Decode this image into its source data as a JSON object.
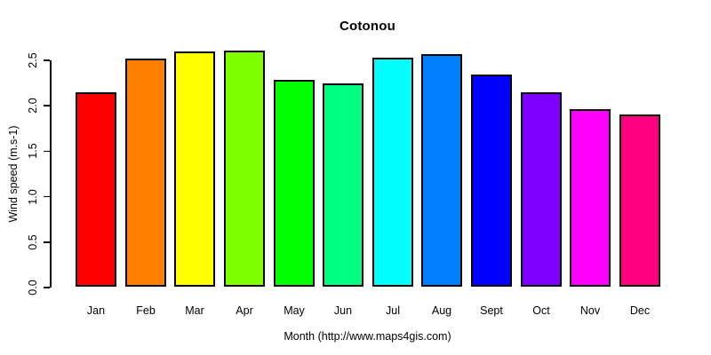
{
  "chart_data": {
    "type": "bar",
    "title": "Cotonou",
    "xlabel": "Month (http://www.maps4gis.com)",
    "ylabel": "Wind speed (m.s-1)",
    "categories": [
      "Jan",
      "Feb",
      "Mar",
      "Apr",
      "May",
      "Jun",
      "Jul",
      "Aug",
      "Sept",
      "Oct",
      "Nov",
      "Dec"
    ],
    "values": [
      2.14,
      2.51,
      2.59,
      2.6,
      2.28,
      2.24,
      2.52,
      2.56,
      2.33,
      2.14,
      1.95,
      1.89
    ],
    "bar_colors": [
      "#FF0000",
      "#FF8000",
      "#FFFF00",
      "#80FF00",
      "#00FF00",
      "#00FF80",
      "#00FFFF",
      "#0080FF",
      "#0000FF",
      "#8000FF",
      "#FF00FF",
      "#FF0080"
    ],
    "bar_border_color": "#000000",
    "axis_color": "#000000",
    "background_color": "#FFFFFF",
    "ylim": [
      0,
      2.5
    ],
    "yticks": [
      "0.0",
      "0.5",
      "1.0",
      "1.5",
      "2.0",
      "2.5"
    ],
    "grid": false,
    "legend_position": "none"
  }
}
